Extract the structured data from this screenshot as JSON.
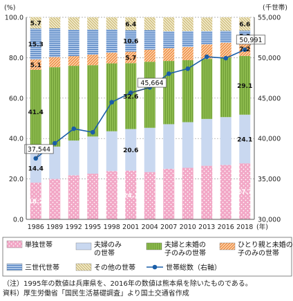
{
  "chart_data": {
    "type": "bar",
    "stacked": true,
    "left_axis_unit": "(%)",
    "right_axis_unit": "(千世帯)",
    "categories": [
      "1986",
      "1989",
      "1992",
      "1995",
      "1998",
      "2001",
      "2004",
      "2007",
      "2010",
      "2013",
      "2016",
      "2018"
    ],
    "x_suffix": "(年)",
    "ylim": [
      0,
      100
    ],
    "yticks": [
      "0.0",
      "20.0",
      "40.0",
      "60.0",
      "80.0",
      "100.0"
    ],
    "y2lim": [
      30000,
      55000
    ],
    "y2ticks": [
      "30,000",
      "35,000",
      "40,000",
      "45,000",
      "50,000",
      "55,000"
    ],
    "series": [
      {
        "name": "単独世帯",
        "color": "#f2a7c6",
        "pattern": "dots",
        "values": [
          18.2,
          20.0,
          21.8,
          22.6,
          23.9,
          24.1,
          23.4,
          25.0,
          25.5,
          26.5,
          26.9,
          27.7
        ],
        "shown_labels": {
          "0": "18.2",
          "5": "24.1",
          "11": "27.7"
        }
      },
      {
        "name": "夫婦のみの世帯",
        "color": "#c9d8f0",
        "pattern": "solid",
        "values": [
          14.4,
          16.0,
          17.2,
          18.4,
          19.7,
          20.6,
          21.9,
          22.1,
          22.6,
          23.2,
          23.7,
          24.1
        ],
        "shown_labels": {
          "0": "14.4",
          "5": "20.6",
          "11": "24.1"
        }
      },
      {
        "name": "夫婦と未婚の子のみの世帯",
        "color": "#8dbb4e",
        "pattern": "vlines",
        "values": [
          41.4,
          39.3,
          37.0,
          35.3,
          33.6,
          32.6,
          32.7,
          31.3,
          30.7,
          29.7,
          29.5,
          29.1
        ],
        "shown_labels": {
          "0": "41.4",
          "5": "32.6",
          "11": "29.1"
        }
      },
      {
        "name": "ひとり親と未婚の子のみの世帯",
        "color": "#f0a060",
        "pattern": "diag",
        "values": [
          5.1,
          5.0,
          4.8,
          5.2,
          5.3,
          5.7,
          6.0,
          6.3,
          6.5,
          7.2,
          7.3,
          7.2
        ],
        "shown_labels": {
          "0": "5.1",
          "5": "5.7",
          "11": "7.2"
        }
      },
      {
        "name": "三世代世帯",
        "color": "#6a92c8",
        "pattern": "hlines",
        "values": [
          15.3,
          14.2,
          13.1,
          12.5,
          11.5,
          10.6,
          9.7,
          8.4,
          7.9,
          6.6,
          5.9,
          5.3
        ],
        "shown_labels": {
          "0": "15.3",
          "5": "10.6",
          "11": "5.3"
        }
      },
      {
        "name": "その他の世帯",
        "color": "#d8c98a",
        "pattern": "diag2",
        "values": [
          5.7,
          5.5,
          6.1,
          6.0,
          6.0,
          6.4,
          6.3,
          6.9,
          6.8,
          6.7,
          6.7,
          6.6
        ],
        "shown_labels": {
          "0": "5.7",
          "5": "6.4",
          "11": "6.6"
        }
      }
    ],
    "line_series": {
      "name": "世帯総数（右軸）",
      "axis": "right",
      "color": "#1a5ea8",
      "values": [
        37544,
        39417,
        41210,
        40770,
        44496,
        45664,
        46323,
        48023,
        48638,
        50112,
        49945,
        50991
      ],
      "callouts": {
        "0": "37,544",
        "5": "45,664",
        "11": "50,991"
      }
    },
    "legend": {
      "row1": [
        "単独世帯",
        "夫婦のみ\nの世帯",
        "夫婦と未婚の\n子のみの世帯",
        "ひとり親と未婚の\n子のみの世帯"
      ],
      "row2": [
        "三世代世帯",
        "その他の世帯",
        "世帯総数（右軸）"
      ]
    },
    "notes": [
      "（注）1995年の数値は兵庫県を、2016年の数値は熊本県を除いたものである。",
      "資料）厚生労働省「国民生活基礎調査」より国土交通省作成"
    ]
  }
}
